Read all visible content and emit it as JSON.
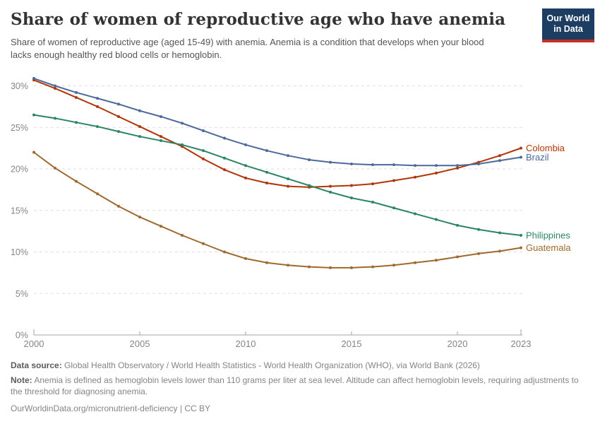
{
  "header": {
    "title": "Share of women of reproductive age who have anemia",
    "subtitle": "Share of women of reproductive age (aged 15-49) with anemia. Anemia is a condition that develops when your blood lacks enough healthy red blood cells or hemoglobin.",
    "logo": {
      "line1": "Our World",
      "line2": "in Data",
      "bg_color": "#1D3D63",
      "stripe_color": "#C5301F"
    }
  },
  "chart_data": {
    "type": "line",
    "title": "Share of women of reproductive age who have anemia",
    "xlabel": "",
    "ylabel": "",
    "xlim": [
      2000,
      2023
    ],
    "ylim": [
      0,
      30
    ],
    "x_ticks": [
      2000,
      2005,
      2010,
      2015,
      2020,
      2023
    ],
    "y_ticks": [
      0,
      5,
      10,
      15,
      20,
      25,
      30
    ],
    "y_tick_suffix": "%",
    "grid": "horizontal-dashed",
    "legend_position": "right-end-labels",
    "x": [
      2000,
      2001,
      2002,
      2003,
      2004,
      2005,
      2006,
      2007,
      2008,
      2009,
      2010,
      2011,
      2012,
      2013,
      2014,
      2015,
      2016,
      2017,
      2018,
      2019,
      2020,
      2021,
      2022,
      2023
    ],
    "series": [
      {
        "name": "Colombia",
        "color": "#B13507",
        "values": [
          30.7,
          29.7,
          28.6,
          27.5,
          26.3,
          25.1,
          23.9,
          22.7,
          21.2,
          19.9,
          18.9,
          18.3,
          17.9,
          17.8,
          17.9,
          18.0,
          18.2,
          18.6,
          19.0,
          19.5,
          20.1,
          20.8,
          21.6,
          22.5
        ]
      },
      {
        "name": "Brazil",
        "color": "#4C6A9C",
        "values": [
          30.9,
          30.0,
          29.2,
          28.5,
          27.8,
          27.0,
          26.3,
          25.5,
          24.6,
          23.7,
          22.9,
          22.2,
          21.6,
          21.1,
          20.8,
          20.6,
          20.5,
          20.5,
          20.4,
          20.4,
          20.4,
          20.6,
          21.0,
          21.4
        ]
      },
      {
        "name": "Philippines",
        "color": "#2C8465",
        "values": [
          26.5,
          26.1,
          25.6,
          25.1,
          24.5,
          23.9,
          23.4,
          22.9,
          22.2,
          21.3,
          20.4,
          19.6,
          18.8,
          18.0,
          17.2,
          16.5,
          16.0,
          15.3,
          14.6,
          13.9,
          13.2,
          12.7,
          12.3,
          12.0
        ]
      },
      {
        "name": "Guatemala",
        "color": "#9E6A2E",
        "values": [
          22.0,
          20.1,
          18.5,
          17.0,
          15.5,
          14.2,
          13.1,
          12.0,
          11.0,
          10.0,
          9.2,
          8.7,
          8.4,
          8.2,
          8.1,
          8.1,
          8.2,
          8.4,
          8.7,
          9.0,
          9.4,
          9.8,
          10.1,
          10.5
        ]
      }
    ],
    "axis_color": "#a3a3a3",
    "gridline_color": "#dddddd",
    "tick_label_color": "#858585"
  },
  "footer": {
    "datasource_label": "Data source:",
    "datasource_text": " Global Health Observatory / World Health Statistics - World Health Organization (WHO), via World Bank (2026)",
    "note_label": "Note:",
    "note_text": " Anemia is defined as hemoglobin levels lower than 110 grams per liter at sea level. Altitude can affect hemoglobin levels, requiring adjustments to the threshold for diagnosing anemia.",
    "url": "OurWorldinData.org/micronutrient-deficiency",
    "separator": " | ",
    "license": "CC BY"
  }
}
